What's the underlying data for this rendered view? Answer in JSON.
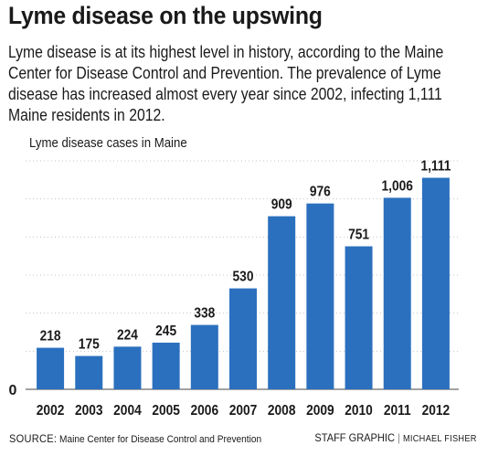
{
  "headline": "Lyme disease on the upswing",
  "deck": "Lyme disease is at its highest level in history, according to the Maine Center for Disease Control and Prevention. The prevalence of Lyme disease has increased almost every year since 2002, infecting 1,111 Maine residents in 2012.",
  "footer": {
    "source_label": "SOURCE:",
    "source_text": "Maine Center for Disease Control and Prevention",
    "credit_label": "STAFF GRAPHIC",
    "separator": "|",
    "credit_name": "MICHAEL FISHER"
  },
  "colors": {
    "bar": "#2b70be",
    "gridline": "#c4c4c4",
    "axis": "#444444",
    "text": "#1a1a1a"
  },
  "chart_data": {
    "type": "bar",
    "title": "Lyme disease cases in Maine",
    "categories": [
      "2002",
      "2003",
      "2004",
      "2005",
      "2006",
      "2007",
      "2008",
      "2009",
      "2010",
      "2011",
      "2012"
    ],
    "values": [
      218,
      175,
      224,
      245,
      338,
      530,
      909,
      976,
      751,
      1006,
      1111
    ],
    "data_labels": [
      "218",
      "175",
      "224",
      "245",
      "338",
      "530",
      "909",
      "976",
      "751",
      "1,006",
      "1,111"
    ],
    "xlabel": "",
    "ylabel": "",
    "ylim": [
      0,
      1200
    ],
    "yticks_labeled": [
      "0"
    ],
    "grid": true
  }
}
